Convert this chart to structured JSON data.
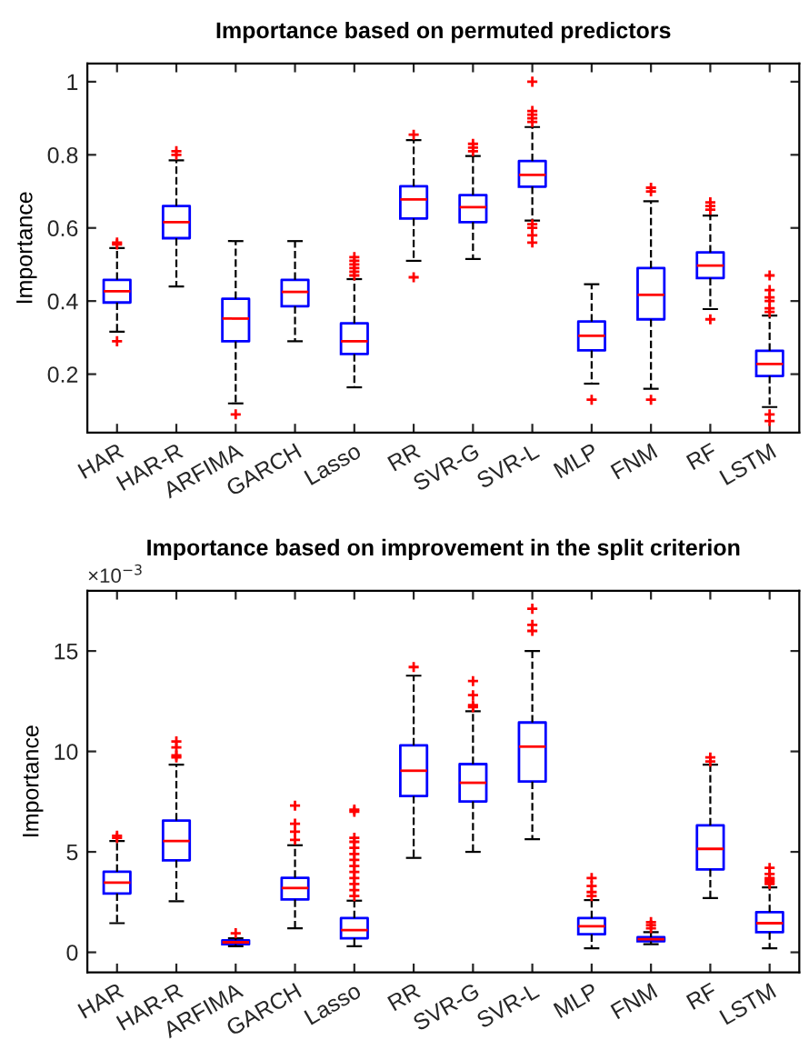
{
  "chart_data": [
    {
      "type": "box",
      "title": "Importance based on permuted predictors",
      "ylabel": "Importance",
      "categories": [
        "HAR",
        "HAR-R",
        "ARFIMA",
        "GARCH",
        "Lasso",
        "RR",
        "SVR-G",
        "SVR-L",
        "MLP",
        "FNM",
        "RF",
        "LSTM"
      ],
      "color": "#0000ff",
      "marker": "cross",
      "grid": false,
      "ylim": [
        0.04,
        1.05
      ],
      "yticks": [
        {
          "value": 0.2,
          "label": "0.2"
        },
        {
          "value": 0.4,
          "label": "0.4"
        },
        {
          "value": 0.6,
          "label": "0.6"
        },
        {
          "value": 0.8,
          "label": "0.8"
        },
        1
      ],
      "boxes": [
        {
          "low": 0.316,
          "q1": 0.396,
          "median": 0.427,
          "q3": 0.458,
          "high": 0.545,
          "outliers": [
            0.555,
            0.56,
            0.29
          ]
        },
        {
          "low": 0.44,
          "q1": 0.572,
          "median": 0.616,
          "q3": 0.66,
          "high": 0.785,
          "outliers": [
            0.8,
            0.81
          ]
        },
        {
          "low": 0.12,
          "q1": 0.29,
          "median": 0.352,
          "q3": 0.406,
          "high": 0.564,
          "outliers": [
            0.09
          ]
        },
        {
          "low": 0.29,
          "q1": 0.386,
          "median": 0.425,
          "q3": 0.458,
          "high": 0.564
        },
        {
          "low": 0.164,
          "q1": 0.255,
          "median": 0.29,
          "q3": 0.339,
          "high": 0.46,
          "outliers": [
            0.47,
            0.48,
            0.49,
            0.5,
            0.51,
            0.52
          ]
        },
        {
          "low": 0.51,
          "q1": 0.626,
          "median": 0.678,
          "q3": 0.714,
          "high": 0.84,
          "outliers": [
            0.855,
            0.465
          ]
        },
        {
          "low": 0.515,
          "q1": 0.616,
          "median": 0.657,
          "q3": 0.69,
          "high": 0.797,
          "outliers": [
            0.81,
            0.82,
            0.83
          ]
        },
        {
          "low": 0.62,
          "q1": 0.713,
          "median": 0.745,
          "q3": 0.783,
          "high": 0.876,
          "outliers": [
            0.89,
            0.9,
            0.91,
            0.92,
            1.0,
            0.61,
            0.6,
            0.58,
            0.56
          ]
        },
        {
          "low": 0.174,
          "q1": 0.265,
          "median": 0.305,
          "q3": 0.344,
          "high": 0.446,
          "outliers": [
            0.13
          ]
        },
        {
          "low": 0.16,
          "q1": 0.35,
          "median": 0.417,
          "q3": 0.49,
          "high": 0.673,
          "outliers": [
            0.7,
            0.71,
            0.13
          ]
        },
        {
          "low": 0.378,
          "q1": 0.463,
          "median": 0.497,
          "q3": 0.533,
          "high": 0.634,
          "outliers": [
            0.65,
            0.66,
            0.67,
            0.35
          ]
        },
        {
          "low": 0.11,
          "q1": 0.195,
          "median": 0.228,
          "q3": 0.264,
          "high": 0.36,
          "outliers": [
            0.37,
            0.38,
            0.4,
            0.41,
            0.43,
            0.47,
            0.09,
            0.072
          ]
        }
      ]
    },
    {
      "type": "box",
      "title": "Importance based on improvement in the split criterion",
      "ylabel": "Importance",
      "annotations": [
        "×10$^{−3}$"
      ],
      "categories": [
        "HAR",
        "HAR-R",
        "ARFIMA",
        "GARCH",
        "Lasso",
        "RR",
        "SVR-G",
        "SVR-L",
        "MLP",
        "FNM",
        "RF",
        "LSTM"
      ],
      "color": "#0000ff",
      "marker": "cross",
      "grid": false,
      "ylim": [
        -1,
        18
      ],
      "yticks": [
        0,
        5,
        10,
        15
      ],
      "boxes": [
        {
          "low": 1.45,
          "q1": 2.93,
          "median": 3.47,
          "q3": 4.01,
          "high": 5.54,
          "outliers": [
            5.7,
            5.8
          ]
        },
        {
          "low": 2.54,
          "q1": 4.58,
          "median": 5.54,
          "q3": 6.56,
          "high": 9.34,
          "outliers": [
            9.7,
            9.8,
            10.2,
            10.5
          ]
        },
        {
          "low": 0.3,
          "q1": 0.4,
          "median": 0.5,
          "q3": 0.6,
          "high": 0.7,
          "outliers": [
            0.95
          ]
        },
        {
          "low": 1.2,
          "q1": 2.63,
          "median": 3.2,
          "q3": 3.71,
          "high": 5.33,
          "outliers": [
            5.6,
            6.0,
            6.4,
            7.3
          ]
        },
        {
          "low": 0.3,
          "q1": 0.7,
          "median": 1.1,
          "q3": 1.7,
          "high": 2.57,
          "outliers": [
            2.8,
            3.1,
            3.4,
            3.7,
            4.0,
            4.3,
            4.6,
            4.9,
            5.2,
            5.5,
            5.7,
            7.0,
            7.1
          ]
        },
        {
          "low": 4.7,
          "q1": 7.78,
          "median": 9.04,
          "q3": 10.3,
          "high": 13.77,
          "outliers": [
            14.2
          ]
        },
        {
          "low": 5.0,
          "q1": 7.51,
          "median": 8.44,
          "q3": 9.37,
          "high": 12.0,
          "outliers": [
            12.2,
            12.3,
            12.8,
            13.5
          ]
        },
        {
          "low": 5.63,
          "q1": 8.5,
          "median": 10.24,
          "q3": 11.44,
          "high": 15.0,
          "outliers": [
            16.0,
            16.3,
            17.1
          ]
        },
        {
          "low": 0.2,
          "q1": 0.9,
          "median": 1.3,
          "q3": 1.7,
          "high": 2.6,
          "outliers": [
            2.8,
            3.0,
            3.3,
            3.7
          ]
        },
        {
          "low": 0.4,
          "q1": 0.55,
          "median": 0.65,
          "q3": 0.75,
          "high": 1.0,
          "outliers": [
            1.2,
            1.35,
            1.5
          ]
        },
        {
          "low": 2.7,
          "q1": 4.13,
          "median": 5.15,
          "q3": 6.32,
          "high": 9.34,
          "outliers": [
            9.5,
            9.7
          ]
        },
        {
          "low": 0.2,
          "q1": 1.0,
          "median": 1.45,
          "q3": 2.0,
          "high": 3.23,
          "outliers": [
            3.4,
            3.5,
            3.6,
            3.7,
            3.9,
            4.2
          ]
        }
      ]
    }
  ]
}
